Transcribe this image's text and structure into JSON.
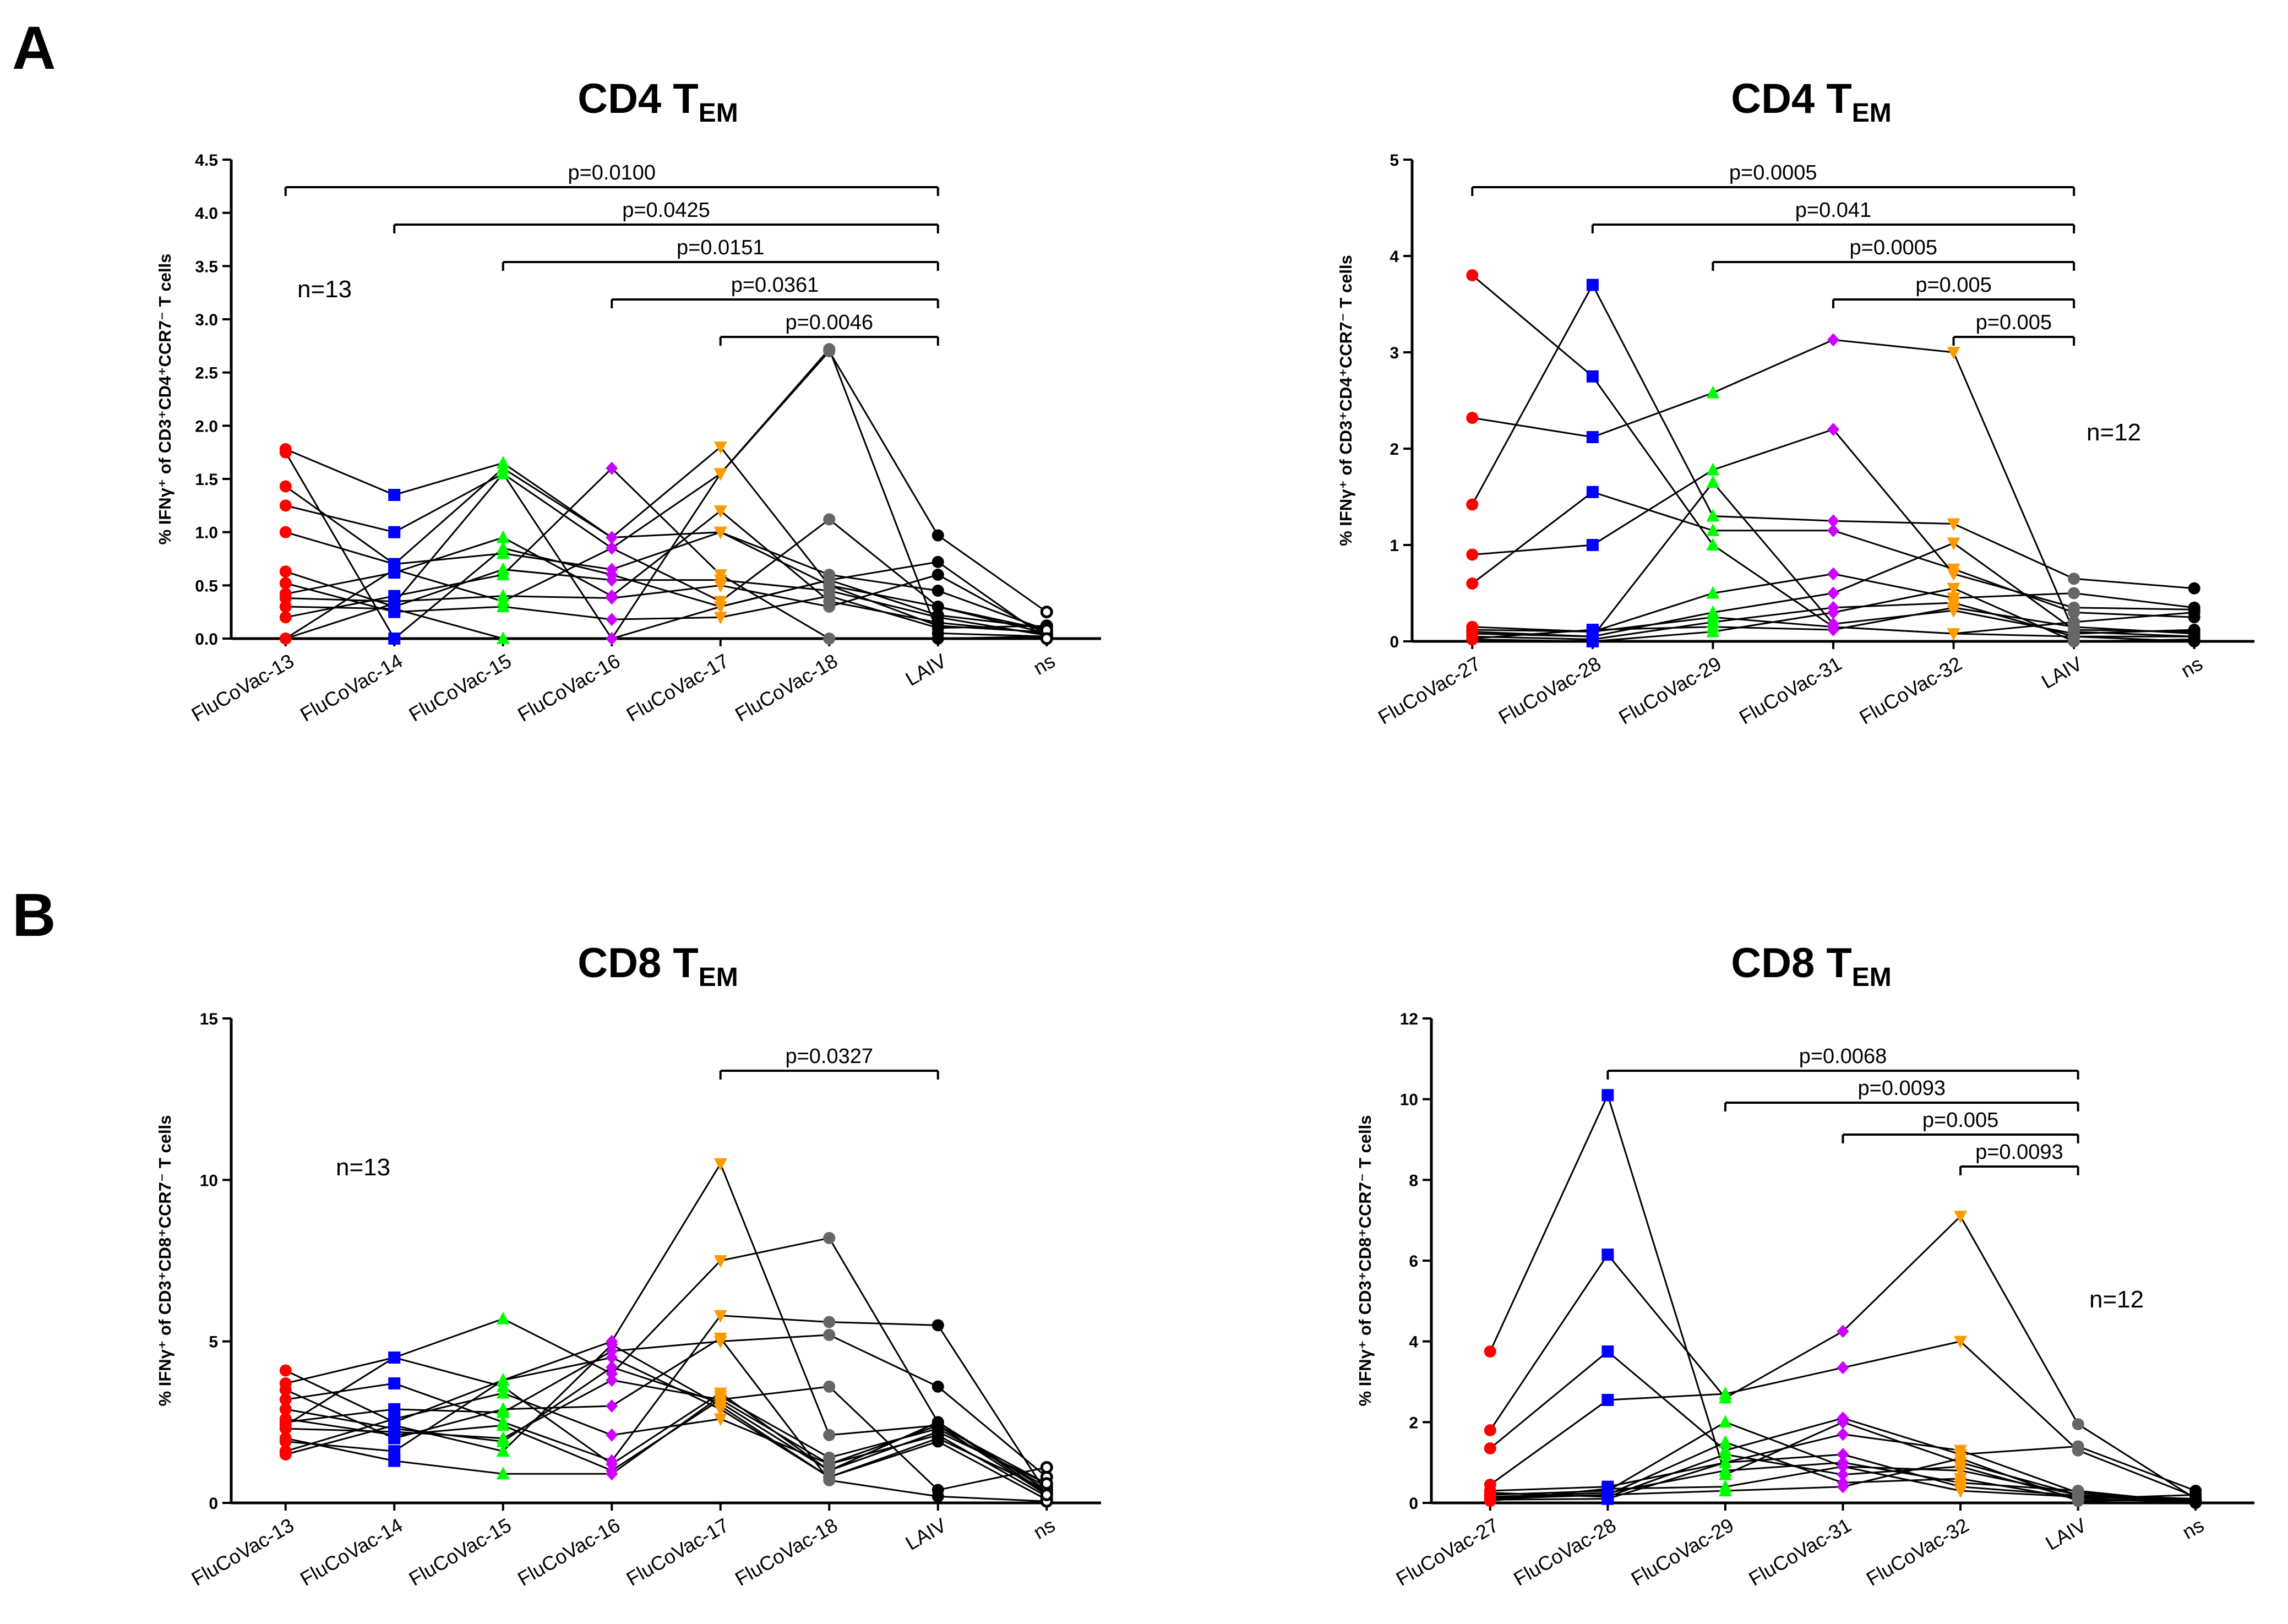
{
  "panel_letters": [
    "A",
    "B"
  ],
  "chart_data": [
    {
      "type": "scatter",
      "panel": "A",
      "title": "CD4 T",
      "title_sub": "EM",
      "ylabel": "% IFNγ⁺ of CD3⁺CD4⁺CCR7⁻ T cells",
      "ylim": [
        0,
        4.5
      ],
      "yticks": [
        "0.0",
        "0.5",
        "1.0",
        "1.5",
        "2.0",
        "2.5",
        "3.0",
        "3.5",
        "4.0",
        "4.5"
      ],
      "categories": [
        "FluCoVac-13",
        "FluCoVac-14",
        "FluCoVac-15",
        "FluCoVac-16",
        "FluCoVac-17",
        "FluCoVac-18",
        "LAIV",
        "ns"
      ],
      "n_label": "n=13",
      "colors": [
        "#ff0000",
        "#0000ff",
        "#00ff00",
        "#cc00ff",
        "#ff9900",
        "#666666",
        "#000000",
        "#000000"
      ],
      "markers": [
        "circle",
        "square",
        "triangle-up",
        "diamond",
        "triangle-down",
        "circle",
        "circle",
        "open-circle"
      ],
      "series": [
        {
          "values": [
            1.78,
            1.35,
            1.65,
            0.95,
            1.8,
            0.5,
            0.3,
            0.05
          ]
        },
        {
          "values": [
            1.25,
            1.0,
            1.55,
            0.85,
            1.55,
            2.72,
            0.05,
            0.02
          ]
        },
        {
          "values": [
            1.0,
            0.7,
            0.8,
            0.65,
            1.0,
            0.6,
            0.45,
            0.08
          ]
        },
        {
          "values": [
            0.63,
            0.3,
            0.65,
            0.55,
            0.55,
            0.45,
            0.2,
            0.03
          ]
        },
        {
          "values": [
            0.52,
            0.25,
            0.3,
            0.18,
            0.2,
            0.4,
            0.1,
            0.12
          ]
        },
        {
          "values": [
            0.42,
            0.62,
            0.95,
            0.4,
            1.2,
            0.35,
            0.15,
            0.05
          ]
        },
        {
          "values": [
            0.38,
            0.35,
            0.4,
            0.38,
            0.5,
            0.3,
            0.6,
            0.04
          ]
        },
        {
          "values": [
            0.3,
            0.28,
            0.0,
            0.0,
            0.3,
            0.55,
            0.22,
            0.1
          ]
        },
        {
          "values": [
            0.2,
            0.4,
            0.6,
            1.6,
            0.6,
            0.0,
            0.0,
            0.02
          ]
        },
        {
          "values": [
            1.43,
            0.7,
            1.6,
            0.95,
            1.0,
            0.5,
            0.12,
            0.06
          ]
        },
        {
          "values": [
            0.0,
            0.65,
            0.35,
            0.85,
            0.35,
            1.12,
            0.3,
            0.08
          ]
        },
        {
          "values": [
            1.75,
            0.0,
            0.85,
            0.6,
            0.3,
            0.55,
            0.72,
            0.0
          ]
        },
        {
          "values": [
            0.0,
            0.33,
            1.55,
            0.0,
            1.55,
            2.7,
            0.97,
            0.25
          ]
        }
      ],
      "comparisons": [
        {
          "from": 0,
          "to": 6,
          "label": "p=0.0100"
        },
        {
          "from": 1,
          "to": 6,
          "label": "p=0.0425"
        },
        {
          "from": 2,
          "to": 6,
          "label": "p=0.0151"
        },
        {
          "from": 3,
          "to": 6,
          "label": "p=0.0361"
        },
        {
          "from": 4,
          "to": 6,
          "label": "p=0.0046"
        }
      ]
    },
    {
      "type": "scatter",
      "panel": "A",
      "title": "CD4 T",
      "title_sub": "EM",
      "ylabel": "% IFNγ⁺ of CD3⁺CD4⁺CCR7⁻ T cells",
      "ylim": [
        0,
        5
      ],
      "yticks": [
        "0",
        "1",
        "2",
        "3",
        "4",
        "5"
      ],
      "categories": [
        "FluCoVac-27",
        "FluCoVac-28",
        "FluCoVac-29",
        "FluCoVac-31",
        "FluCoVac-32",
        "LAIV",
        "ns"
      ],
      "n_label": "n=12",
      "colors": [
        "#ff0000",
        "#0000ff",
        "#00ff00",
        "#cc00ff",
        "#ff9900",
        "#666666",
        "#000000"
      ],
      "markers": [
        "circle",
        "square",
        "triangle-up",
        "diamond",
        "triangle-down",
        "circle",
        "circle"
      ],
      "series": [
        {
          "values": [
            3.8,
            2.75,
            1.0,
            0.15,
            0.08,
            0.05,
            0.05
          ]
        },
        {
          "values": [
            2.32,
            2.12,
            2.58,
            3.13,
            3.0,
            0.1,
            0.05
          ]
        },
        {
          "values": [
            1.42,
            3.7,
            1.3,
            1.25,
            1.22,
            0.65,
            0.55
          ]
        },
        {
          "values": [
            0.9,
            1.0,
            1.78,
            2.2,
            0.7,
            0.35,
            0.33
          ]
        },
        {
          "values": [
            0.6,
            1.55,
            1.15,
            1.15,
            0.75,
            0.3,
            0.25
          ]
        },
        {
          "values": [
            0.15,
            0.1,
            0.5,
            0.7,
            0.45,
            0.5,
            0.35
          ]
        },
        {
          "values": [
            0.1,
            0.05,
            0.3,
            0.5,
            1.02,
            0.12,
            0.1
          ]
        },
        {
          "values": [
            0.05,
            0.02,
            0.2,
            0.35,
            0.4,
            0.05,
            0.0
          ]
        },
        {
          "values": [
            0.12,
            0.1,
            0.25,
            0.15,
            0.08,
            0.2,
            0.3
          ]
        },
        {
          "values": [
            0.02,
            0.0,
            0.1,
            0.3,
            0.55,
            0.0,
            0.02
          ]
        },
        {
          "values": [
            0.08,
            0.05,
            1.65,
            0.18,
            0.32,
            0.08,
            0.12
          ]
        },
        {
          "values": [
            0.03,
            0.12,
            0.15,
            0.12,
            0.35,
            0.15,
            0.08
          ]
        }
      ],
      "comparisons": [
        {
          "from": 0,
          "to": 5,
          "label": "p=0.0005"
        },
        {
          "from": 1,
          "to": 5,
          "label": "p=0.041"
        },
        {
          "from": 2,
          "to": 5,
          "label": "p=0.0005"
        },
        {
          "from": 3,
          "to": 5,
          "label": "p=0.005"
        },
        {
          "from": 4,
          "to": 5,
          "label": "p=0.005"
        }
      ]
    },
    {
      "type": "scatter",
      "panel": "B",
      "title": "CD8 T",
      "title_sub": "EM",
      "ylabel": "% IFNγ⁺ of CD3⁺CD8⁺CCR7⁻ T cells",
      "ylim": [
        0,
        15
      ],
      "yticks": [
        "0",
        "5",
        "10",
        "15"
      ],
      "categories": [
        "FluCoVac-13",
        "FluCoVac-14",
        "FluCoVac-15",
        "FluCoVac-16",
        "FluCoVac-17",
        "FluCoVac-18",
        "LAIV",
        "ns"
      ],
      "n_label": "n=13",
      "colors": [
        "#ff0000",
        "#0000ff",
        "#00ff00",
        "#cc00ff",
        "#ff9900",
        "#666666",
        "#000000",
        "#000000"
      ],
      "markers": [
        "circle",
        "square",
        "triangle-up",
        "diamond",
        "triangle-down",
        "circle",
        "circle",
        "open-circle"
      ],
      "series": [
        {
          "values": [
            4.1,
            2.5,
            3.8,
            5.0,
            10.5,
            2.1,
            2.4,
            0.6
          ]
        },
        {
          "values": [
            3.7,
            4.5,
            5.7,
            4.0,
            7.5,
            8.2,
            2.5,
            0.4
          ]
        },
        {
          "values": [
            3.2,
            3.7,
            2.5,
            1.3,
            5.8,
            5.6,
            5.5,
            0.3
          ]
        },
        {
          "values": [
            2.5,
            2.9,
            2.8,
            4.7,
            5.0,
            5.2,
            3.6,
            0.8
          ]
        },
        {
          "values": [
            2.3,
            2.2,
            2.0,
            3.8,
            3.2,
            3.6,
            0.4,
            1.1
          ]
        },
        {
          "values": [
            2.0,
            1.3,
            0.9,
            0.9,
            3.3,
            1.4,
            2.3,
            0.5
          ]
        },
        {
          "values": [
            1.6,
            2.6,
            3.4,
            2.1,
            2.6,
            1.2,
            2.1,
            0.2
          ]
        },
        {
          "values": [
            1.5,
            2.4,
            1.6,
            4.9,
            3.0,
            0.8,
            1.9,
            0.1
          ]
        },
        {
          "values": [
            2.4,
            4.5,
            3.6,
            1.2,
            3.4,
            1.0,
            2.5,
            0.3
          ]
        },
        {
          "values": [
            3.5,
            2.0,
            2.9,
            3.0,
            5.1,
            0.7,
            0.2,
            0.05
          ]
        },
        {
          "values": [
            1.9,
            1.6,
            3.8,
            4.5,
            2.9,
            0.8,
            2.0,
            0.4
          ]
        },
        {
          "values": [
            2.9,
            2.3,
            1.9,
            4.2,
            3.1,
            1.0,
            2.2,
            0.6
          ]
        },
        {
          "values": [
            2.6,
            2.1,
            2.4,
            1.0,
            3.2,
            1.2,
            2.4,
            0.25
          ]
        }
      ],
      "comparisons": [
        {
          "from": 4,
          "to": 6,
          "label": "p=0.0327"
        }
      ]
    },
    {
      "type": "scatter",
      "panel": "B",
      "title": "CD8 T",
      "title_sub": "EM",
      "ylabel": "% IFNγ⁺ of CD3⁺CD8⁺CCR7⁻ T cells",
      "ylim": [
        0,
        12
      ],
      "yticks": [
        "0",
        "2",
        "4",
        "6",
        "8",
        "10",
        "12"
      ],
      "categories": [
        "FluCoVac-27",
        "FluCoVac-28",
        "FluCoVac-29",
        "FluCoVac-31",
        "FluCoVac-32",
        "LAIV",
        "ns"
      ],
      "n_label": "n=12",
      "colors": [
        "#ff0000",
        "#0000ff",
        "#00ff00",
        "#cc00ff",
        "#ff9900",
        "#666666",
        "#000000"
      ],
      "markers": [
        "circle",
        "square",
        "triangle-up",
        "diamond",
        "triangle-down",
        "circle",
        "circle"
      ],
      "series": [
        {
          "values": [
            3.75,
            10.1,
            0.7,
            2.0,
            1.0,
            0.2,
            0.05
          ]
        },
        {
          "values": [
            1.8,
            6.15,
            2.6,
            4.25,
            7.1,
            1.95,
            0.1
          ]
        },
        {
          "values": [
            1.35,
            3.75,
            1.3,
            2.1,
            1.2,
            1.4,
            0.3
          ]
        },
        {
          "values": [
            0.45,
            2.55,
            2.7,
            3.35,
            4.0,
            1.3,
            0.15
          ]
        },
        {
          "values": [
            0.3,
            0.4,
            1.0,
            1.7,
            1.3,
            0.25,
            0.05
          ]
        },
        {
          "values": [
            0.2,
            0.3,
            2.0,
            0.9,
            0.8,
            0.2,
            0.1
          ]
        },
        {
          "values": [
            0.15,
            0.25,
            0.8,
            1.0,
            0.5,
            0.3,
            0.0
          ]
        },
        {
          "values": [
            0.1,
            0.2,
            1.5,
            0.5,
            0.6,
            0.1,
            0.2
          ]
        },
        {
          "values": [
            0.05,
            0.35,
            0.4,
            0.9,
            0.3,
            0.15,
            0.05
          ]
        },
        {
          "values": [
            0.25,
            0.15,
            1.2,
            0.7,
            0.9,
            0.1,
            0.02
          ]
        },
        {
          "values": [
            0.12,
            0.2,
            0.3,
            0.4,
            1.1,
            0.05,
            0.08
          ]
        },
        {
          "values": [
            0.08,
            0.1,
            1.0,
            1.2,
            0.4,
            0.18,
            0.03
          ]
        }
      ],
      "comparisons": [
        {
          "from": 1,
          "to": 5,
          "label": "p=0.0068"
        },
        {
          "from": 2,
          "to": 5,
          "label": "p=0.0093"
        },
        {
          "from": 3,
          "to": 5,
          "label": "p=0.005"
        },
        {
          "from": 4,
          "to": 5,
          "label": "p=0.0093"
        }
      ]
    }
  ]
}
